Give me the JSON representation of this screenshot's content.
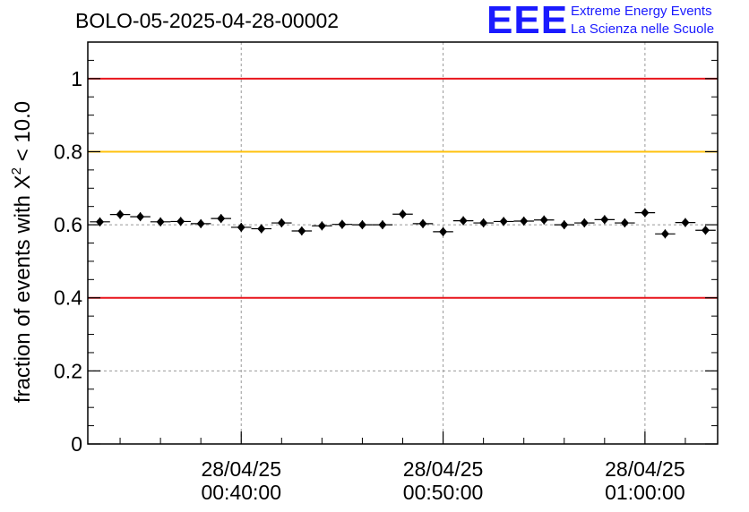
{
  "title": "BOLO-05-2025-04-28-00002",
  "logo": {
    "letters": "EEE",
    "line1": "Extreme Energy Events",
    "line2": "La Scienza nelle Scuole",
    "color": "#1a1aff"
  },
  "chart_data": {
    "type": "scatter",
    "title": "BOLO-05-2025-04-28-00002",
    "xlabel": "",
    "ylabel_prefix": "fraction of events with ",
    "ylabel_chi": "X",
    "ylabel_sup": "2",
    "ylabel_suffix": " < 10.0",
    "ylim": [
      0,
      1.1
    ],
    "xlim_minutes": [
      32.4,
      63.6
    ],
    "y_ticks": [
      {
        "value": 0,
        "label": "0"
      },
      {
        "value": 0.2,
        "label": "0.2"
      },
      {
        "value": 0.4,
        "label": "0.4"
      },
      {
        "value": 0.6,
        "label": "0.6"
      },
      {
        "value": 0.8,
        "label": "0.8"
      },
      {
        "value": 1,
        "label": "1"
      }
    ],
    "x_ticks": [
      {
        "minutes": 40,
        "date": "28/04/25",
        "time": "00:40:00"
      },
      {
        "minutes": 50,
        "date": "28/04/25",
        "time": "00:50:00"
      },
      {
        "minutes": 60,
        "date": "28/04/25",
        "time": "01:00:00"
      }
    ],
    "reference_lines": [
      {
        "value": 1.0,
        "color": "#e8141b"
      },
      {
        "value": 0.8,
        "color": "#ffc20e"
      },
      {
        "value": 0.4,
        "color": "#e8141b"
      }
    ],
    "grid": true,
    "bin_width_minutes": 1,
    "series": [
      {
        "x_minutes": [
          33,
          34,
          35,
          36,
          37,
          38,
          39,
          40,
          41,
          42,
          43,
          44,
          45,
          46,
          47,
          48,
          49,
          50,
          51,
          52,
          53,
          54,
          55,
          56,
          57,
          58,
          59,
          60,
          61,
          62,
          63
        ],
        "values": [
          0.608,
          0.628,
          0.622,
          0.608,
          0.609,
          0.603,
          0.617,
          0.593,
          0.589,
          0.605,
          0.583,
          0.597,
          0.601,
          0.6,
          0.6,
          0.629,
          0.603,
          0.581,
          0.611,
          0.605,
          0.609,
          0.61,
          0.613,
          0.6,
          0.605,
          0.614,
          0.605,
          0.633,
          0.575,
          0.606,
          0.585
        ],
        "color": "#000000"
      }
    ]
  }
}
